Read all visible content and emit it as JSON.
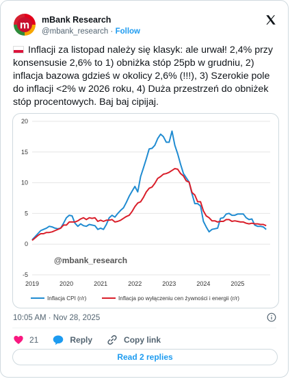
{
  "author": {
    "name": "mBank Research",
    "handle": "@mbank_research",
    "separator": "·",
    "follow_label": "Follow",
    "logo_letter": "m"
  },
  "tweet": {
    "flag_icon": "poland-flag-icon",
    "text": "Inflacji za listopad należy się klasyk: ale urwał! 2,4% przy konsensusie 2,6% to 1) obniżka stóp 25pb w grudniu, 2) inflacja bazowa gdzieś w okolicy 2,6% (!!!), 3) Szerokie pole do inflacji <2% w 2026 roku, 4) Duża przestrzeń do obniżek stóp procentowych. Baj baj cipijaj.",
    "timestamp": "10:05 AM · Nov 28, 2025"
  },
  "actions": {
    "like_count": "21",
    "reply_label": "Reply",
    "copy_label": "Copy link",
    "read_replies_label": "Read 2 replies"
  },
  "colors": {
    "cpi": "#1f8bd1",
    "core": "#d91e2a",
    "like": "#f91880",
    "accent": "#1d9bf0"
  },
  "chart_data": {
    "type": "line",
    "watermark": "@mbank_research",
    "ylim": [
      -5,
      20
    ],
    "yticks": [
      -5,
      0,
      5,
      10,
      15,
      20
    ],
    "xlim": [
      2019,
      2025.95
    ],
    "xticks": [
      2019,
      2020,
      2021,
      2022,
      2023,
      2024,
      2025
    ],
    "x_start_year": 2019,
    "x_start_month": 1,
    "series": [
      {
        "name": "Inflacja CPI (r/r)",
        "color": "#1f8bd1",
        "values": [
          0.7,
          1.2,
          1.7,
          2.2,
          2.4,
          2.6,
          2.9,
          2.8,
          2.6,
          2.5,
          2.6,
          3.4,
          4.3,
          4.7,
          4.6,
          3.4,
          2.9,
          3.3,
          3.0,
          2.9,
          3.2,
          3.1,
          3.0,
          2.4,
          2.6,
          2.4,
          3.2,
          4.3,
          4.7,
          4.4,
          5.0,
          5.5,
          5.9,
          6.8,
          7.8,
          8.6,
          9.4,
          8.5,
          11.0,
          12.4,
          13.9,
          15.5,
          15.6,
          16.1,
          17.2,
          17.9,
          17.5,
          16.6,
          16.6,
          18.4,
          16.1,
          14.7,
          13.0,
          11.5,
          10.8,
          10.1,
          8.2,
          6.6,
          6.6,
          6.2,
          3.7,
          2.8,
          2.0,
          2.4,
          2.5,
          2.6,
          4.2,
          4.3,
          4.9,
          5.0,
          4.7,
          4.7,
          4.9,
          4.9,
          4.9,
          4.3,
          4.0,
          4.1,
          3.1,
          2.9,
          2.9,
          2.8,
          2.4
        ]
      },
      {
        "name": "Inflacja po wyłączeniu cen żywności i energii (r/r)",
        "color": "#d91e2a",
        "values": [
          0.6,
          1.0,
          1.4,
          1.7,
          1.7,
          1.9,
          1.9,
          2.0,
          2.2,
          2.4,
          2.6,
          3.1,
          3.1,
          3.6,
          3.6,
          3.6,
          3.8,
          4.1,
          4.3,
          4.0,
          4.3,
          4.2,
          4.3,
          3.7,
          3.9,
          3.7,
          3.9,
          3.9,
          4.0,
          3.6,
          3.7,
          3.9,
          4.2,
          4.5,
          4.7,
          5.3,
          6.1,
          6.7,
          6.9,
          7.6,
          8.5,
          9.1,
          9.3,
          9.9,
          10.7,
          11.0,
          11.4,
          11.5,
          11.7,
          12.0,
          12.3,
          12.2,
          11.5,
          11.1,
          10.3,
          10.1,
          8.4,
          8.0,
          6.9,
          6.9,
          5.4,
          4.6,
          4.3,
          3.8,
          3.8,
          3.6,
          3.7,
          3.7,
          4.0,
          4.0,
          3.7,
          3.8,
          3.7,
          3.6,
          3.6,
          3.4,
          3.3,
          3.4,
          3.3,
          3.3,
          3.2,
          3.2,
          3.0
        ]
      }
    ]
  }
}
